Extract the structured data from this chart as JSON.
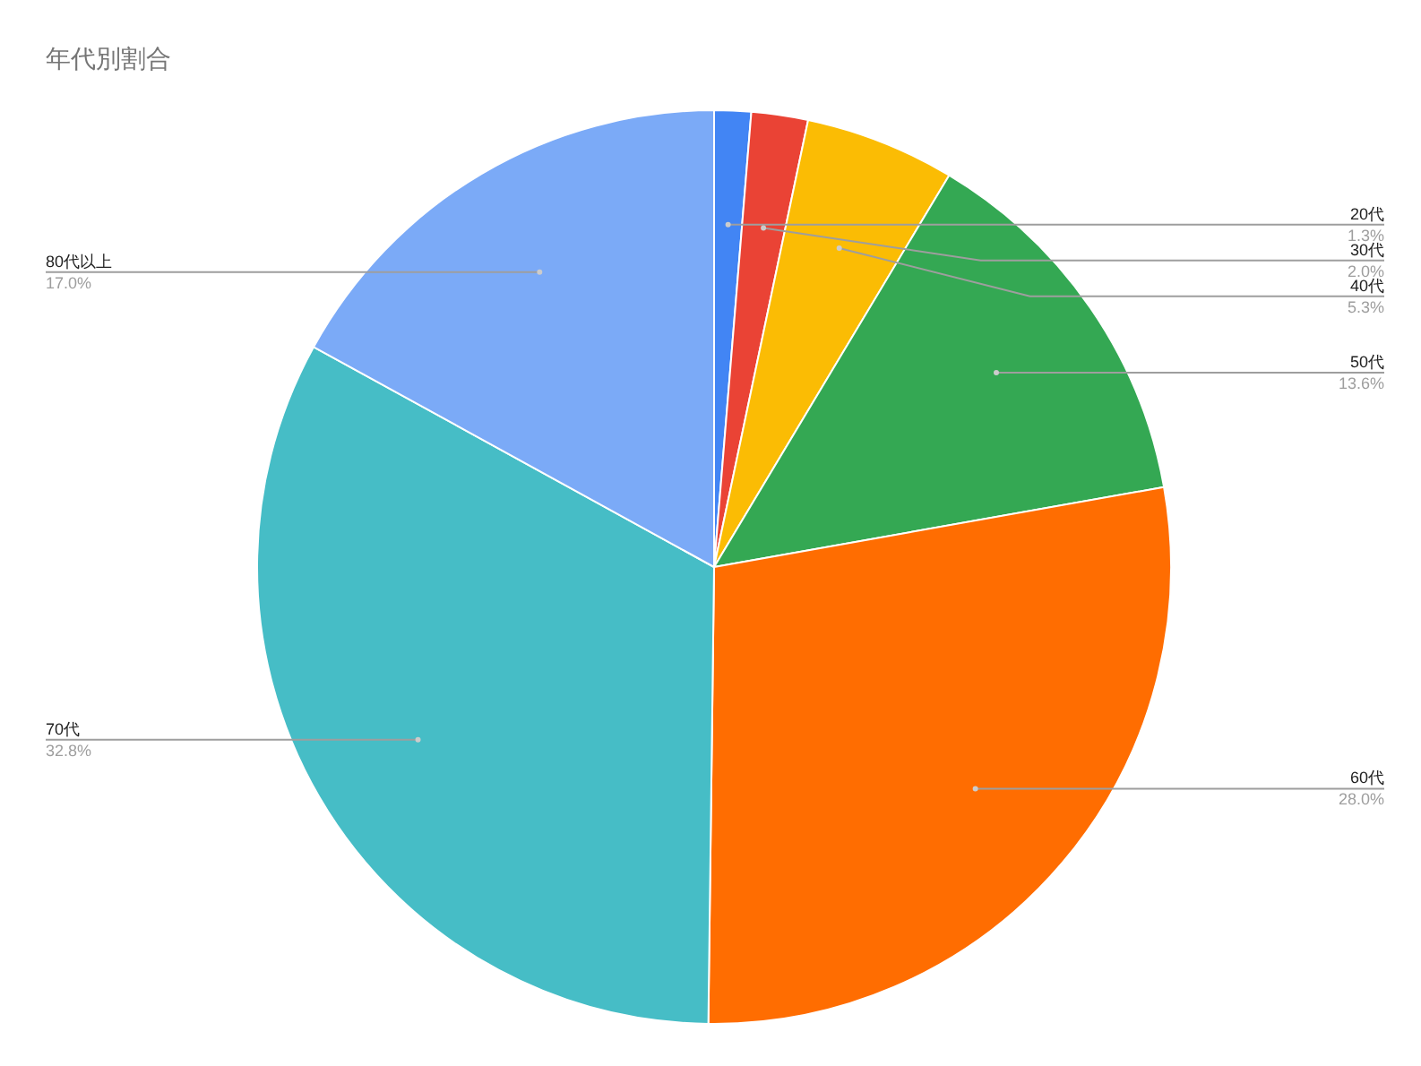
{
  "chart_data": {
    "type": "pie",
    "title": "年代別割合",
    "categories": [
      "20代",
      "30代",
      "40代",
      "50代",
      "60代",
      "70代",
      "80代以上"
    ],
    "values": [
      1.3,
      2.0,
      5.3,
      13.6,
      28.0,
      32.8,
      17.0
    ],
    "value_labels": [
      "1.3%",
      "2.0%",
      "5.3%",
      "13.6%",
      "28.0%",
      "32.8%",
      "17.0%"
    ],
    "colors": [
      "#4285f4",
      "#ea4335",
      "#fbbc04",
      "#34a853",
      "#ff6d01",
      "#46bdc6",
      "#7baaf7"
    ]
  }
}
